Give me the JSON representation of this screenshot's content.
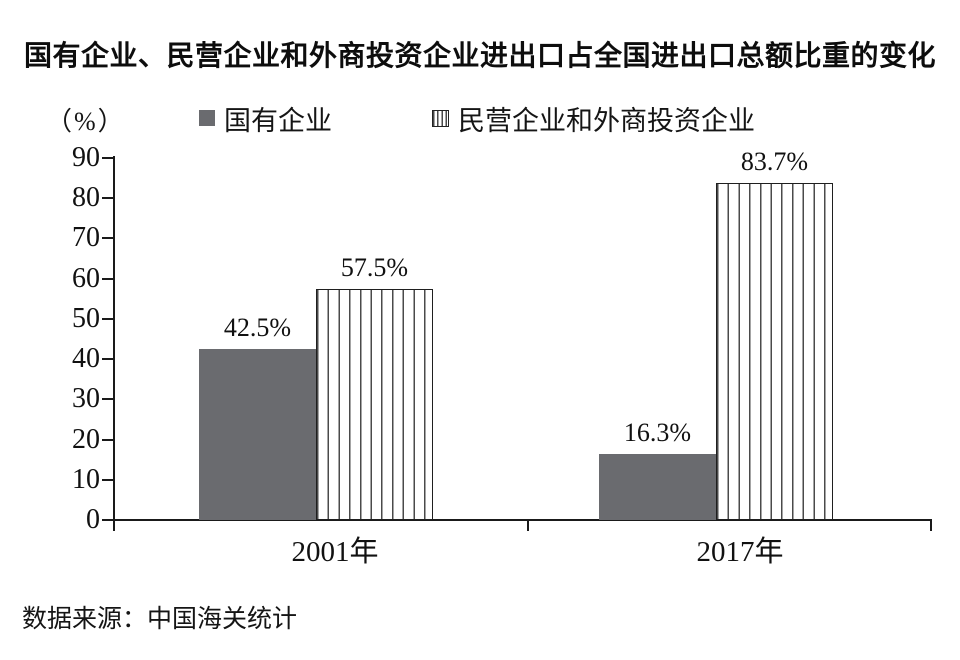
{
  "chart_data": {
    "type": "bar",
    "title": "国有企业、民营企业和外商投资企业进出口占全国进出口总额比重的变化",
    "ylabel": "（%）",
    "xlabel": "",
    "categories": [
      "2001年",
      "2017年"
    ],
    "series": [
      {
        "name": "国有企业",
        "pattern": "solid",
        "values": [
          42.5,
          16.3
        ],
        "value_labels": [
          "42.5%",
          "16.3%"
        ]
      },
      {
        "name": "民营企业和外商投资企业",
        "pattern": "striped",
        "values": [
          57.5,
          83.7
        ],
        "value_labels": [
          "57.5%",
          "83.7%"
        ]
      }
    ],
    "ylim": [
      0,
      90
    ],
    "yticks": [
      0,
      10,
      20,
      30,
      40,
      50,
      60,
      70,
      80,
      90
    ],
    "grid": false,
    "legend_position": "top",
    "colors": {
      "solid_bar": "#6a6b6f",
      "stripe_line": "#4a4a4a",
      "axis": "#1a1a1a",
      "text": "#111111",
      "background": "#ffffff"
    }
  },
  "source_note": "数据来源：中国海关统计"
}
